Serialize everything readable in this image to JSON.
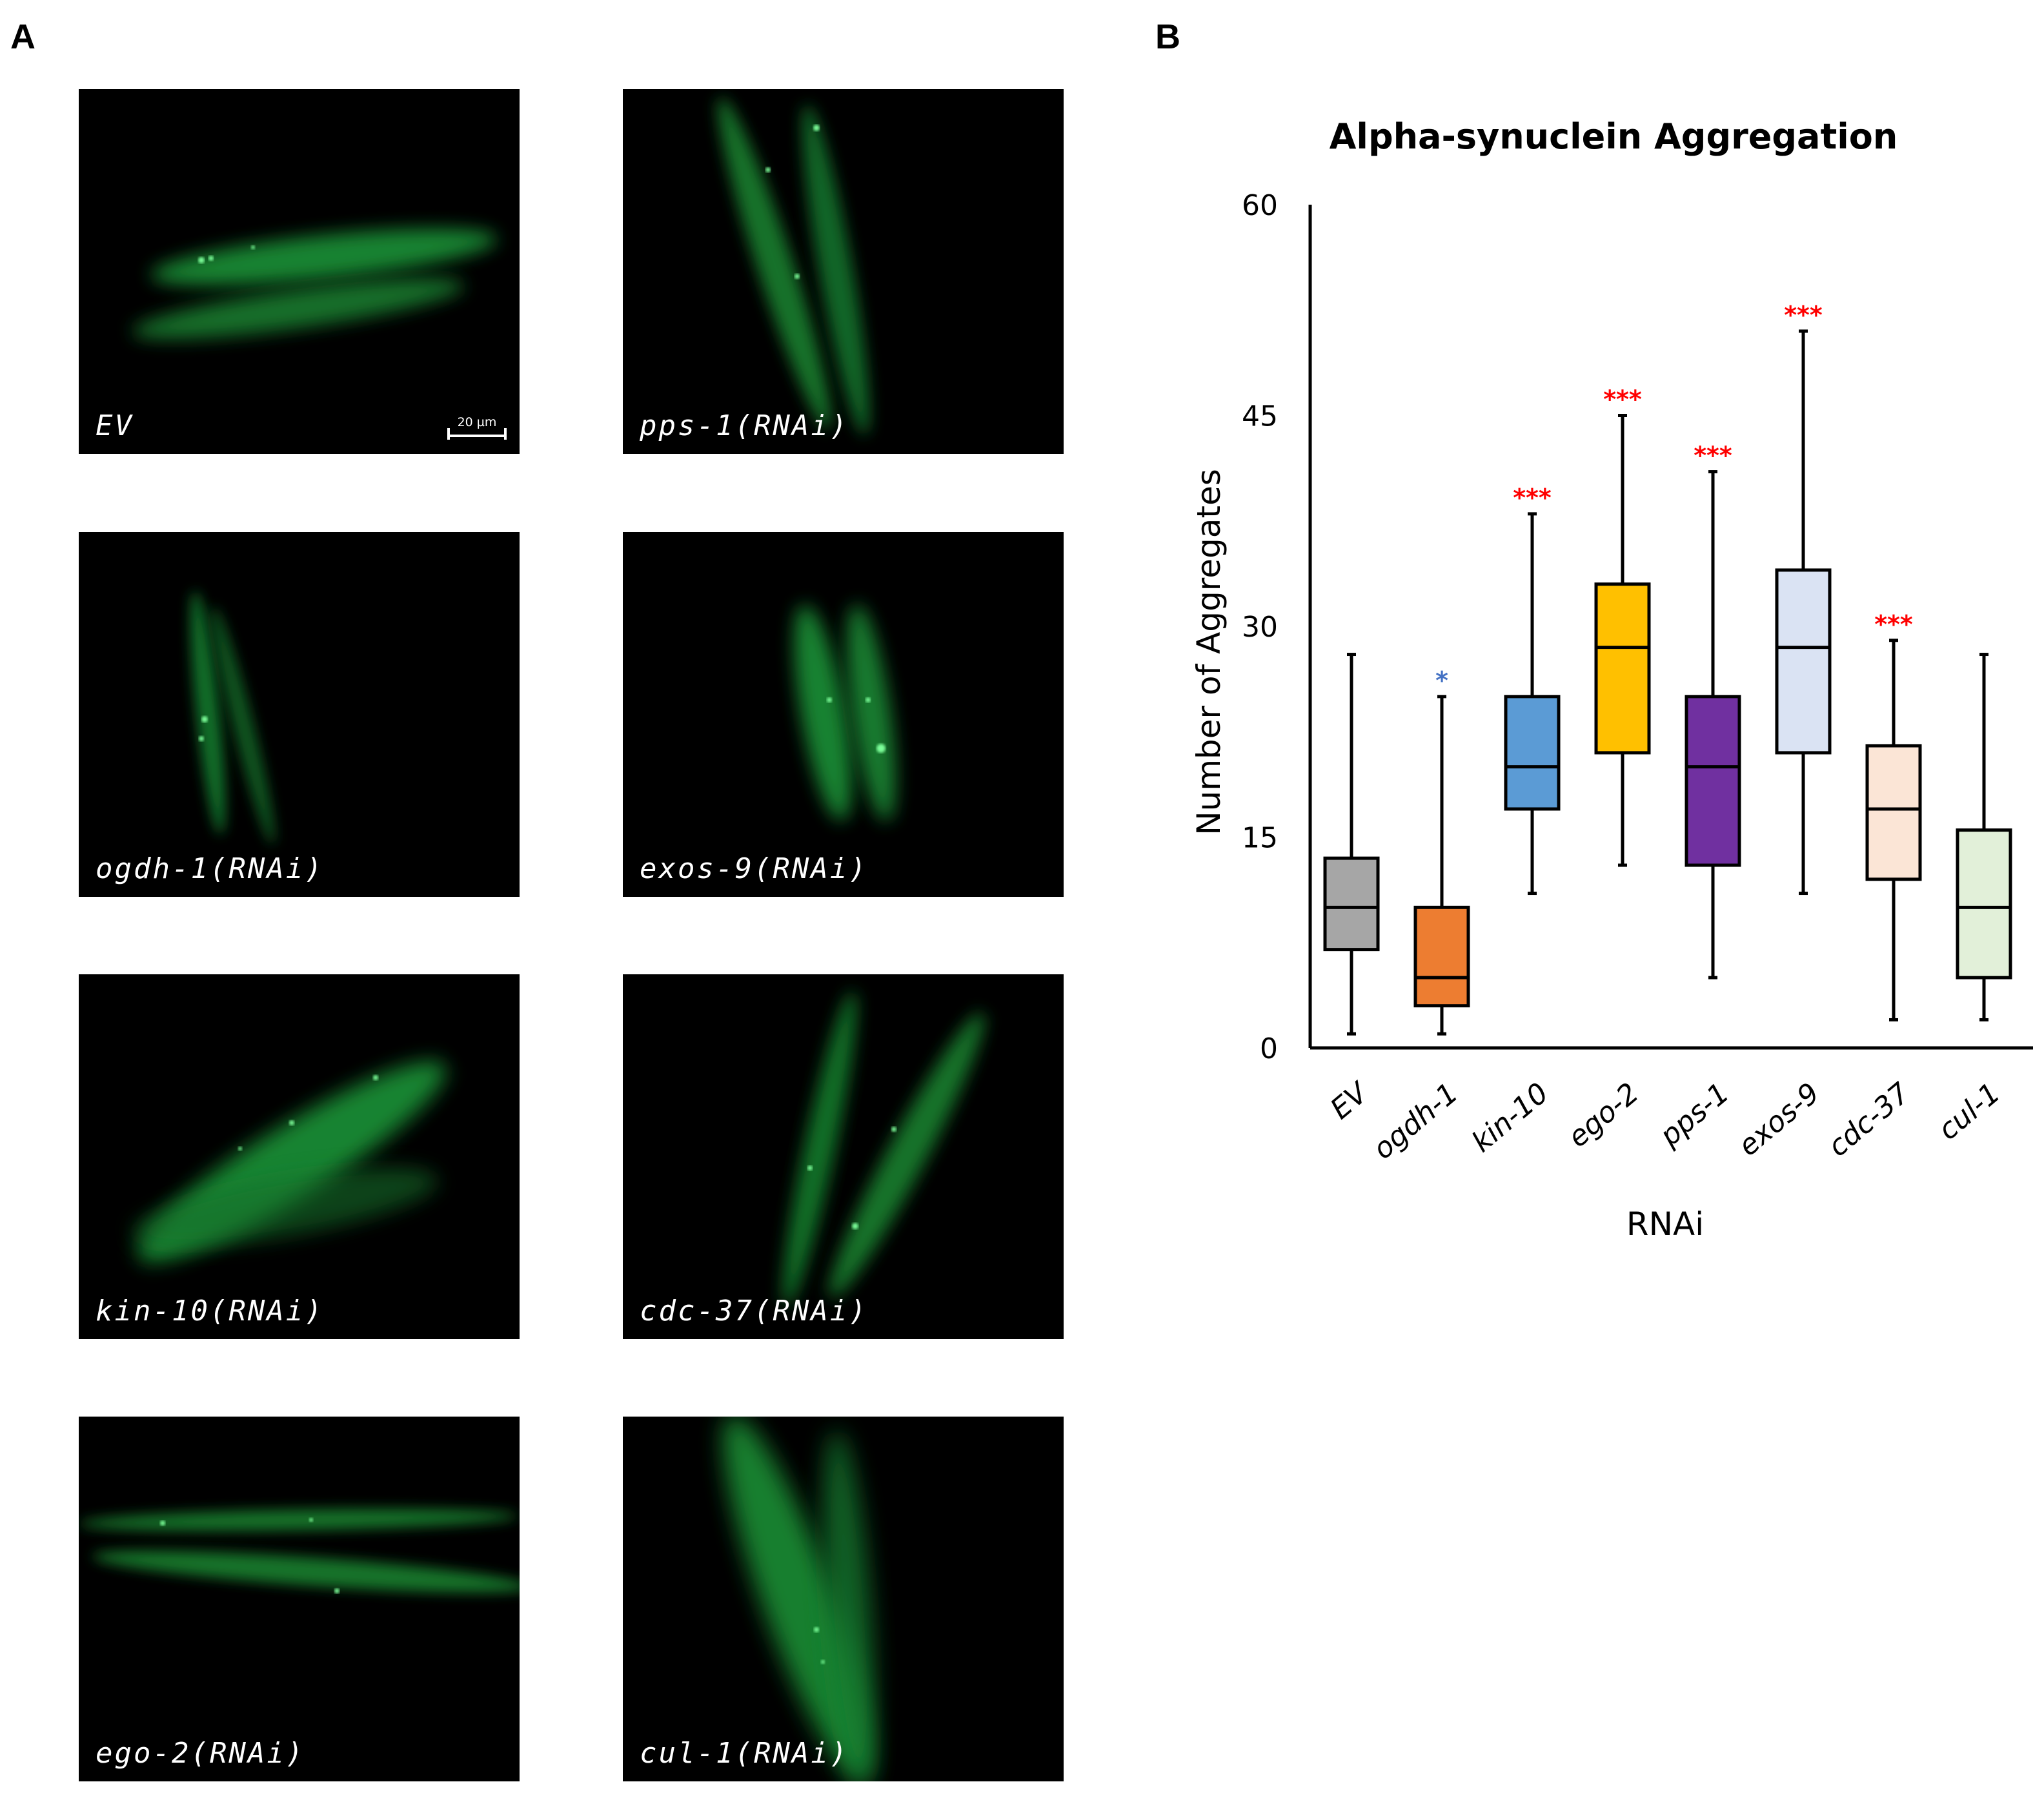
{
  "panel_a": {
    "letter": "A",
    "scale_bar": "20 µm",
    "images": [
      {
        "label": "EV"
      },
      {
        "label": "pps-1(RNAi)"
      },
      {
        "label": "ogdh-1(RNAi)"
      },
      {
        "label": "exos-9(RNAi)"
      },
      {
        "label": "kin-10(RNAi)"
      },
      {
        "label": "cdc-37(RNAi)"
      },
      {
        "label": "ego-2(RNAi)"
      },
      {
        "label": "cul-1(RNAi)"
      }
    ]
  },
  "panel_b": {
    "letter": "B"
  },
  "chart_data": {
    "type": "boxplot",
    "title": "Alpha-synuclein Aggregation",
    "xlabel": "RNAi",
    "ylabel": "Number of Aggregates",
    "ylim": [
      0,
      60
    ],
    "yticks": [
      0,
      15,
      30,
      45,
      60
    ],
    "categories": [
      "EV",
      "ogdh-1",
      "kin-10",
      "ego-2",
      "pps-1",
      "exos-9",
      "cdc-37",
      "cul-1"
    ],
    "boxes": [
      {
        "name": "EV",
        "min": 1,
        "q1": 7,
        "median": 10,
        "q3": 13.5,
        "max": 28,
        "color": "#a6a6a6",
        "sig": "",
        "sig_color": ""
      },
      {
        "name": "ogdh-1",
        "min": 1,
        "q1": 3,
        "median": 5,
        "q3": 10,
        "max": 25,
        "color": "#ed7d31",
        "sig": "*",
        "sig_color": "#4472c4"
      },
      {
        "name": "kin-10",
        "min": 11,
        "q1": 17,
        "median": 20,
        "q3": 25,
        "max": 38,
        "color": "#5b9bd5",
        "sig": "***",
        "sig_color": "#ff0000"
      },
      {
        "name": "ego-2",
        "min": 13,
        "q1": 21,
        "median": 28.5,
        "q3": 33,
        "max": 45,
        "color": "#ffc000",
        "sig": "***",
        "sig_color": "#ff0000"
      },
      {
        "name": "pps-1",
        "min": 5,
        "q1": 13,
        "median": 20,
        "q3": 25,
        "max": 41,
        "color": "#7030a0",
        "sig": "***",
        "sig_color": "#ff0000"
      },
      {
        "name": "exos-9",
        "min": 11,
        "q1": 21,
        "median": 28.5,
        "q3": 34,
        "max": 51,
        "color": "#dae3f3",
        "sig": "***",
        "sig_color": "#ff0000"
      },
      {
        "name": "cdc-37",
        "min": 2,
        "q1": 12,
        "median": 17,
        "q3": 21.5,
        "max": 29,
        "color": "#fbe5d6",
        "sig": "***",
        "sig_color": "#ff0000"
      },
      {
        "name": "cul-1",
        "min": 2,
        "q1": 5,
        "median": 10,
        "q3": 15.5,
        "max": 28,
        "color": "#e2f0d9",
        "sig": "",
        "sig_color": ""
      }
    ]
  }
}
